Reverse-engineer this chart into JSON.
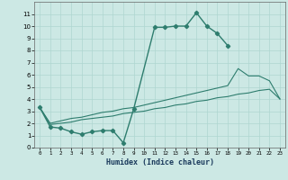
{
  "xlabel": "Humidex (Indice chaleur)",
  "main_curve_x": [
    0,
    1,
    2,
    3,
    4,
    5,
    6,
    7,
    8,
    9,
    11,
    12,
    13,
    14,
    15,
    16,
    17,
    18
  ],
  "main_curve_y": [
    3.3,
    1.7,
    1.6,
    1.3,
    1.1,
    1.3,
    1.4,
    1.4,
    0.4,
    3.2,
    9.9,
    9.9,
    10.0,
    10.0,
    11.1,
    10.0,
    9.4,
    8.4
  ],
  "line_upper_x": [
    0,
    1,
    2,
    3,
    4,
    5,
    6,
    7,
    8,
    9,
    10,
    11,
    12,
    13,
    14,
    15,
    16,
    17,
    18,
    19,
    20,
    21,
    22,
    23
  ],
  "line_upper_y": [
    3.3,
    2.0,
    2.2,
    2.4,
    2.5,
    2.7,
    2.9,
    3.0,
    3.2,
    3.3,
    3.5,
    3.7,
    3.9,
    4.1,
    4.3,
    4.5,
    4.7,
    4.9,
    5.1,
    6.5,
    5.9,
    5.9,
    5.5,
    4.0
  ],
  "line_lower_x": [
    0,
    1,
    2,
    3,
    4,
    5,
    6,
    7,
    8,
    9,
    10,
    11,
    12,
    13,
    14,
    15,
    16,
    17,
    18,
    19,
    20,
    21,
    22,
    23
  ],
  "line_lower_y": [
    3.3,
    1.9,
    2.0,
    2.1,
    2.3,
    2.4,
    2.5,
    2.6,
    2.8,
    2.9,
    3.0,
    3.2,
    3.3,
    3.5,
    3.6,
    3.8,
    3.9,
    4.1,
    4.2,
    4.4,
    4.5,
    4.7,
    4.8,
    4.0
  ],
  "color": "#2e7d6e",
  "bg_color": "#cce8e4",
  "grid_color": "#aed6d0",
  "ylim": [
    0,
    12
  ],
  "xlim": [
    -0.5,
    23.5
  ],
  "yticks": [
    0,
    1,
    2,
    3,
    4,
    5,
    6,
    7,
    8,
    9,
    10,
    11
  ],
  "xticks": [
    0,
    1,
    2,
    3,
    4,
    5,
    6,
    7,
    8,
    9,
    10,
    11,
    12,
    13,
    14,
    15,
    16,
    17,
    18,
    19,
    20,
    21,
    22,
    23
  ]
}
